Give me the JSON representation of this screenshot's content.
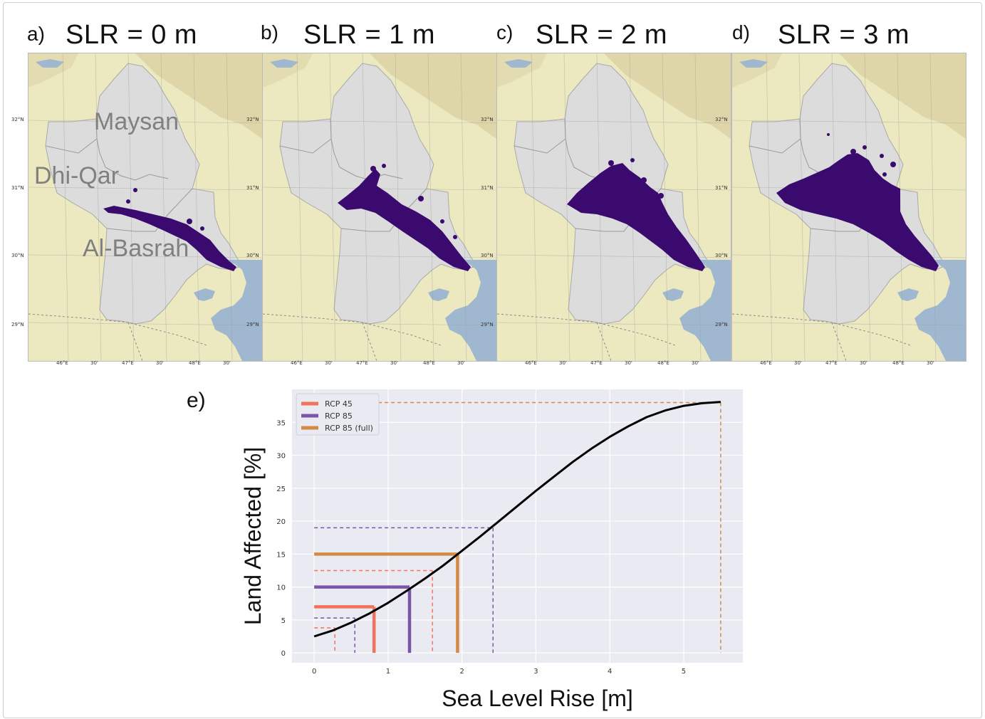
{
  "panels": [
    {
      "letter": "a)",
      "title": "SLR = 0 m",
      "extent_level": 0
    },
    {
      "letter": "b)",
      "title": "SLR = 1 m",
      "extent_level": 1
    },
    {
      "letter": "c)",
      "title": "SLR = 2 m",
      "extent_level": 2
    },
    {
      "letter": "d)",
      "title": "SLR = 3 m",
      "extent_level": 3
    }
  ],
  "map_labels": {
    "regions": [
      "Maysan",
      "Dhi-Qar",
      "Al-Basrah"
    ],
    "lat_ticks": [
      "32°N",
      "31°N",
      "30°N",
      "29°N"
    ],
    "lon_ticks": [
      "46°E",
      "30'",
      "47°E",
      "30'",
      "48°E",
      "30'"
    ]
  },
  "colors": {
    "land": "#ece8c0",
    "terrain": "#d9cfa0",
    "governorates": "#dcdcdc",
    "water": "#9fb8d0",
    "flooded": "#3a0a6e",
    "curve": "#000000",
    "rcp45": "#f2735c",
    "rcp85": "#7a56a8",
    "rcp85_full": "#d38a45",
    "plot_bg": "#eaeaf2"
  },
  "chart_letter": "e)",
  "chart_data": {
    "type": "line",
    "xlabel": "Sea Level Rise [m]",
    "ylabel": "Land Affected [%]",
    "xlim": [
      -0.3,
      5.8
    ],
    "ylim": [
      -1.5,
      40
    ],
    "xticks": [
      0,
      1,
      2,
      3,
      4,
      5
    ],
    "yticks": [
      0,
      5,
      10,
      15,
      20,
      25,
      30,
      35
    ],
    "grid": true,
    "legend": {
      "position": "top-left",
      "entries": [
        "RCP 45",
        "RCP 85",
        "RCP 85 (full)"
      ]
    },
    "curve": {
      "x": [
        0,
        0.25,
        0.5,
        0.75,
        1.0,
        1.25,
        1.5,
        1.75,
        2.0,
        2.25,
        2.5,
        2.75,
        3.0,
        3.25,
        3.5,
        3.75,
        4.0,
        4.25,
        4.5,
        4.75,
        5.0,
        5.25,
        5.5
      ],
      "y": [
        2.5,
        3.4,
        4.6,
        6.0,
        7.6,
        9.4,
        11.3,
        13.3,
        15.5,
        17.7,
        20.0,
        22.3,
        24.6,
        26.8,
        29.0,
        31.0,
        32.8,
        34.4,
        35.8,
        36.8,
        37.5,
        37.9,
        38.1
      ]
    },
    "series": [
      {
        "name": "RCP 45",
        "median": [
          0.81,
          7.0
        ],
        "low": [
          0.28,
          3.8
        ],
        "high": [
          1.6,
          12.5
        ]
      },
      {
        "name": "RCP 85",
        "median": [
          1.29,
          10.0
        ],
        "low": [
          0.55,
          5.3
        ],
        "high": [
          2.42,
          19.0
        ]
      },
      {
        "name": "RCP 85 (full)",
        "median": [
          1.94,
          15.0
        ],
        "high": [
          5.5,
          38.0
        ]
      }
    ]
  }
}
